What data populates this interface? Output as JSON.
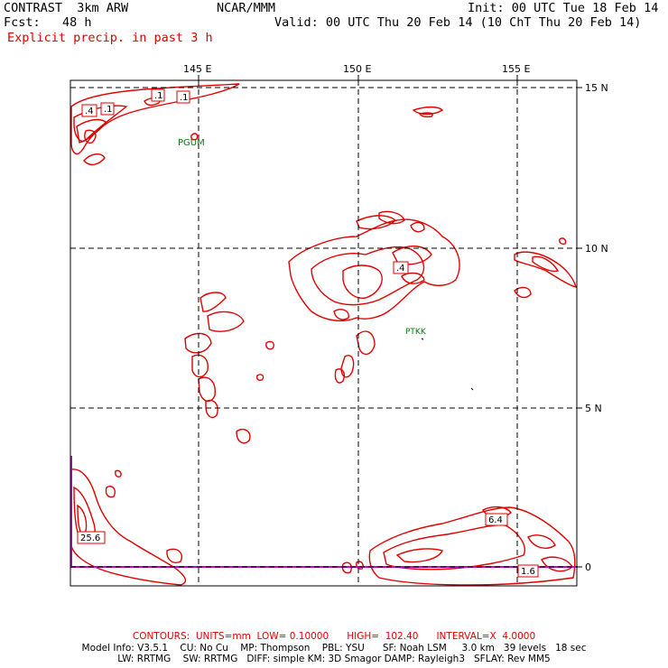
{
  "header": {
    "model": "CONTRAST  3km ARW",
    "org": "NCAR/MMM",
    "init": "Init: 00 UTC Tue 18 Feb 14",
    "fcst": "Fcst:   48 h",
    "valid": "Valid: 00 UTC Thu 20 Feb 14 (10 ChT Thu 20 Feb 14)",
    "field": "Explicit precip. in past 3 h"
  },
  "map": {
    "lon_labels": [
      "145 E",
      "150 E",
      "155 E"
    ],
    "lat_labels": [
      "15 N",
      "10 N",
      "5 N",
      "0"
    ],
    "stations": [
      "PGUM",
      "PTKK"
    ],
    "contour_labels": [
      ".4",
      ".1",
      ".1",
      ".1",
      ".4",
      "25.6",
      "6.4",
      "1.6"
    ],
    "colors": {
      "contour": "#e00000",
      "grid": "#000000",
      "boundary": "#cc00cc",
      "station": "#0a7a0a"
    }
  },
  "footer": {
    "contours": "CONTOURS:  UNITS=mm  LOW= 0.10000      HIGH=  102.40      INTERVAL=X  4.0000",
    "model_info_1": "Model Info: V3.5.1    CU: No Cu    MP: Thompson    PBL: YSU      SF: Noah LSM     3.0 km   39 levels   18 sec",
    "model_info_2": "LW: RRTMG    SW: RRTMG   DIFF: simple KM: 3D Smagor DAMP: Rayleigh3   SFLAY: Rev MM5"
  }
}
